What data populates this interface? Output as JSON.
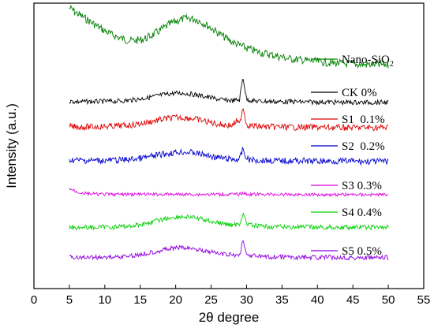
{
  "chart_data": {
    "type": "line",
    "xlabel": "2θ degree",
    "ylabel": "Intensity (a.u.)",
    "xlim": [
      0,
      55
    ],
    "x_ticks": [
      "0",
      "5",
      "10",
      "15",
      "20",
      "25",
      "30",
      "35",
      "40",
      "45",
      "50",
      "55"
    ],
    "y_ticks_shown": false,
    "grid": false,
    "legend_placement": "inline-right",
    "x_range": [
      5,
      50
    ],
    "series": [
      {
        "name": "Nano-SiO",
        "name_sub": "2",
        "color": "#008000",
        "x": [
          5,
          6,
          7,
          8,
          9,
          10,
          11,
          12,
          13,
          14,
          15,
          16,
          17,
          18,
          19,
          20,
          21,
          22,
          23,
          24,
          25,
          26,
          27,
          28,
          29,
          30,
          31,
          32,
          33,
          34,
          35,
          36,
          37,
          38,
          39,
          40,
          41,
          42,
          43,
          44,
          45,
          46,
          47,
          48,
          49,
          50
        ],
        "y": [
          0.95,
          0.88,
          0.82,
          0.76,
          0.7,
          0.64,
          0.59,
          0.55,
          0.52,
          0.51,
          0.52,
          0.55,
          0.6,
          0.66,
          0.72,
          0.77,
          0.8,
          0.81,
          0.79,
          0.74,
          0.68,
          0.61,
          0.55,
          0.49,
          0.45,
          0.41,
          0.38,
          0.35,
          0.33,
          0.31,
          0.29,
          0.27,
          0.26,
          0.25,
          0.24,
          0.23,
          0.22,
          0.21,
          0.21,
          0.2,
          0.2,
          0.19,
          0.19,
          0.19,
          0.19,
          0.19
        ]
      },
      {
        "name": "CK 0%",
        "color": "#000000",
        "x": [
          5,
          6,
          7,
          8,
          9,
          10,
          11,
          12,
          13,
          14,
          15,
          16,
          17,
          18,
          19,
          20,
          21,
          22,
          23,
          24,
          25,
          26,
          27,
          28,
          29,
          29.5,
          30,
          31,
          32,
          33,
          34,
          35,
          36,
          37,
          38,
          39,
          40,
          41,
          42,
          43,
          44,
          45,
          46,
          47,
          48,
          49,
          50
        ],
        "y": [
          0.1,
          0.09,
          0.09,
          0.09,
          0.09,
          0.1,
          0.1,
          0.11,
          0.12,
          0.14,
          0.17,
          0.2,
          0.24,
          0.28,
          0.31,
          0.33,
          0.33,
          0.31,
          0.28,
          0.24,
          0.2,
          0.16,
          0.13,
          0.12,
          0.14,
          0.8,
          0.16,
          0.11,
          0.1,
          0.1,
          0.09,
          0.09,
          0.09,
          0.09,
          0.08,
          0.08,
          0.08,
          0.08,
          0.08,
          0.07,
          0.07,
          0.07,
          0.07,
          0.07,
          0.07,
          0.07,
          0.07
        ]
      },
      {
        "name": "S1  0.1%",
        "color": "#e00000",
        "x": [
          5,
          6,
          7,
          8,
          9,
          10,
          11,
          12,
          13,
          14,
          15,
          16,
          17,
          18,
          19,
          20,
          21,
          22,
          23,
          24,
          25,
          26,
          27,
          28,
          28.6,
          29,
          29.5,
          30,
          31,
          32,
          33,
          34,
          35,
          36,
          37,
          38,
          39,
          40,
          41,
          42,
          43,
          44,
          45,
          46,
          47,
          48,
          49,
          50
        ],
        "y": [
          0.1,
          0.09,
          0.09,
          0.09,
          0.1,
          0.1,
          0.11,
          0.12,
          0.13,
          0.15,
          0.18,
          0.22,
          0.26,
          0.3,
          0.33,
          0.35,
          0.35,
          0.34,
          0.3,
          0.26,
          0.21,
          0.17,
          0.14,
          0.13,
          0.26,
          0.14,
          0.68,
          0.15,
          0.11,
          0.1,
          0.09,
          0.09,
          0.09,
          0.08,
          0.08,
          0.08,
          0.08,
          0.08,
          0.07,
          0.07,
          0.07,
          0.07,
          0.07,
          0.07,
          0.07,
          0.07,
          0.07,
          0.07
        ]
      },
      {
        "name": "S2  0.2%",
        "color": "#0000d0",
        "x": [
          5,
          6,
          7,
          8,
          9,
          10,
          11,
          12,
          13,
          14,
          15,
          16,
          17,
          18,
          19,
          20,
          21,
          22,
          23,
          24,
          25,
          26,
          27,
          28,
          29,
          29.5,
          30,
          31,
          32,
          33,
          34,
          35,
          36,
          37,
          38,
          39,
          40,
          41,
          42,
          43,
          44,
          45,
          46,
          47,
          48,
          49,
          50
        ],
        "y": [
          0.12,
          0.11,
          0.1,
          0.1,
          0.1,
          0.1,
          0.11,
          0.11,
          0.12,
          0.14,
          0.16,
          0.19,
          0.23,
          0.27,
          0.3,
          0.33,
          0.34,
          0.33,
          0.3,
          0.26,
          0.22,
          0.18,
          0.15,
          0.13,
          0.13,
          0.42,
          0.14,
          0.11,
          0.1,
          0.1,
          0.09,
          0.09,
          0.09,
          0.09,
          0.09,
          0.08,
          0.08,
          0.08,
          0.08,
          0.08,
          0.08,
          0.08,
          0.07,
          0.07,
          0.07,
          0.07,
          0.07
        ]
      },
      {
        "name": "S3 0.3%",
        "color": "#e000e0",
        "x": [
          5,
          6,
          7,
          8,
          9,
          10,
          11,
          12,
          13,
          14,
          15,
          16,
          17,
          18,
          19,
          20,
          21,
          22,
          23,
          24,
          25,
          26,
          27,
          28,
          29,
          29.5,
          30,
          31,
          32,
          33,
          34,
          35,
          36,
          37,
          38,
          39,
          40,
          41,
          42,
          43,
          44,
          45,
          46,
          47,
          48,
          49,
          50
        ],
        "y": [
          0.3,
          0.16,
          0.1,
          0.07,
          0.06,
          0.05,
          0.05,
          0.05,
          0.05,
          0.05,
          0.05,
          0.05,
          0.05,
          0.05,
          0.05,
          0.05,
          0.05,
          0.05,
          0.05,
          0.05,
          0.05,
          0.05,
          0.05,
          0.05,
          0.05,
          0.12,
          0.05,
          0.05,
          0.05,
          0.05,
          0.05,
          0.04,
          0.04,
          0.04,
          0.04,
          0.04,
          0.04,
          0.04,
          0.04,
          0.04,
          0.04,
          0.04,
          0.04,
          0.04,
          0.04,
          0.04,
          0.04
        ]
      },
      {
        "name": "S4 0.4%",
        "color": "#00d000",
        "x": [
          5,
          6,
          7,
          8,
          9,
          10,
          11,
          12,
          13,
          14,
          15,
          16,
          17,
          18,
          19,
          20,
          21,
          22,
          23,
          24,
          25,
          26,
          27,
          28,
          29,
          29.5,
          30,
          31,
          32,
          33,
          34,
          35,
          36,
          37,
          38,
          39,
          40,
          41,
          42,
          43,
          44,
          45,
          46,
          47,
          48,
          49,
          50
        ],
        "y": [
          0.08,
          0.08,
          0.08,
          0.08,
          0.08,
          0.09,
          0.09,
          0.1,
          0.11,
          0.13,
          0.16,
          0.2,
          0.25,
          0.3,
          0.34,
          0.37,
          0.38,
          0.37,
          0.34,
          0.3,
          0.25,
          0.21,
          0.17,
          0.15,
          0.17,
          0.5,
          0.18,
          0.13,
          0.11,
          0.1,
          0.1,
          0.09,
          0.09,
          0.09,
          0.09,
          0.09,
          0.08,
          0.08,
          0.08,
          0.08,
          0.08,
          0.08,
          0.08,
          0.08,
          0.08,
          0.08,
          0.08
        ]
      },
      {
        "name": "S5 0.5%",
        "color": "#9000e0",
        "x": [
          5,
          6,
          7,
          8,
          9,
          10,
          11,
          12,
          13,
          14,
          15,
          16,
          17,
          18,
          19,
          20,
          21,
          22,
          23,
          24,
          25,
          26,
          27,
          28,
          29,
          29.5,
          30,
          31,
          32,
          33,
          34,
          35,
          36,
          37,
          38,
          39,
          40,
          41,
          42,
          43,
          44,
          45,
          46,
          47,
          48,
          49,
          50
        ],
        "y": [
          0.08,
          0.08,
          0.08,
          0.08,
          0.08,
          0.09,
          0.09,
          0.1,
          0.11,
          0.13,
          0.16,
          0.2,
          0.24,
          0.28,
          0.32,
          0.34,
          0.35,
          0.34,
          0.31,
          0.27,
          0.23,
          0.19,
          0.16,
          0.14,
          0.15,
          0.55,
          0.16,
          0.12,
          0.1,
          0.09,
          0.09,
          0.09,
          0.09,
          0.08,
          0.08,
          0.08,
          0.08,
          0.08,
          0.08,
          0.08,
          0.08,
          0.07,
          0.07,
          0.07,
          0.07,
          0.07,
          0.07
        ]
      }
    ]
  }
}
